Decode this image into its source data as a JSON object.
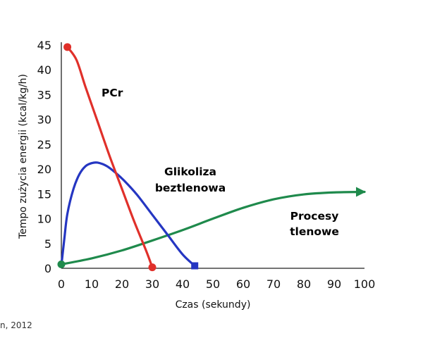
{
  "chart_data": {
    "type": "line",
    "title": "",
    "xlabel": "Czas (sekundy)",
    "ylabel": "Tempo zużycia energii (kcal/kg/h)",
    "xlim": [
      0,
      100
    ],
    "ylim": [
      0,
      45
    ],
    "x_ticks": [
      0,
      10,
      20,
      30,
      40,
      50,
      60,
      70,
      80,
      90,
      100
    ],
    "y_ticks": [
      0,
      5,
      10,
      15,
      20,
      25,
      30,
      35,
      40,
      45
    ],
    "grid": false,
    "legend": "none",
    "series": [
      {
        "name": "PCr",
        "color": "#e0302a",
        "end_marker": "circle",
        "x": [
          2,
          5,
          8,
          12,
          16,
          20,
          24,
          28,
          30
        ],
        "y": [
          44.6,
          42.0,
          36.5,
          29.5,
          22.5,
          16.0,
          9.5,
          3.5,
          0.2
        ]
      },
      {
        "name": "Glikoliza beztlenowa",
        "color": "#2536c2",
        "end_marker": "square",
        "x": [
          0,
          1,
          2,
          4,
          6,
          8,
          10,
          12,
          15,
          18,
          21,
          25,
          30,
          35,
          40,
          44
        ],
        "y": [
          0.5,
          6.0,
          11.0,
          16.0,
          19.0,
          20.6,
          21.2,
          21.3,
          20.6,
          19.2,
          17.5,
          14.8,
          10.8,
          6.8,
          2.8,
          0.5
        ]
      },
      {
        "name": "Procesy tlenowe",
        "color": "#1f8a4c",
        "end_marker": "arrow",
        "x": [
          0,
          10,
          20,
          30,
          40,
          50,
          60,
          70,
          80,
          90,
          100
        ],
        "y": [
          0.8,
          2.0,
          3.6,
          5.6,
          7.7,
          10.0,
          12.2,
          13.9,
          14.9,
          15.3,
          15.4
        ]
      }
    ],
    "annotations": [
      {
        "text": "PCr",
        "color": "#e0302a"
      },
      {
        "text": "Glikoliza",
        "color": "#2536c2"
      },
      {
        "text": "beztlenowa",
        "color": "#2536c2"
      },
      {
        "text": "Procesy",
        "color": "#1f8a4c"
      },
      {
        "text": "tlenowe",
        "color": "#1f8a4c"
      }
    ]
  },
  "source": "n, 2012"
}
